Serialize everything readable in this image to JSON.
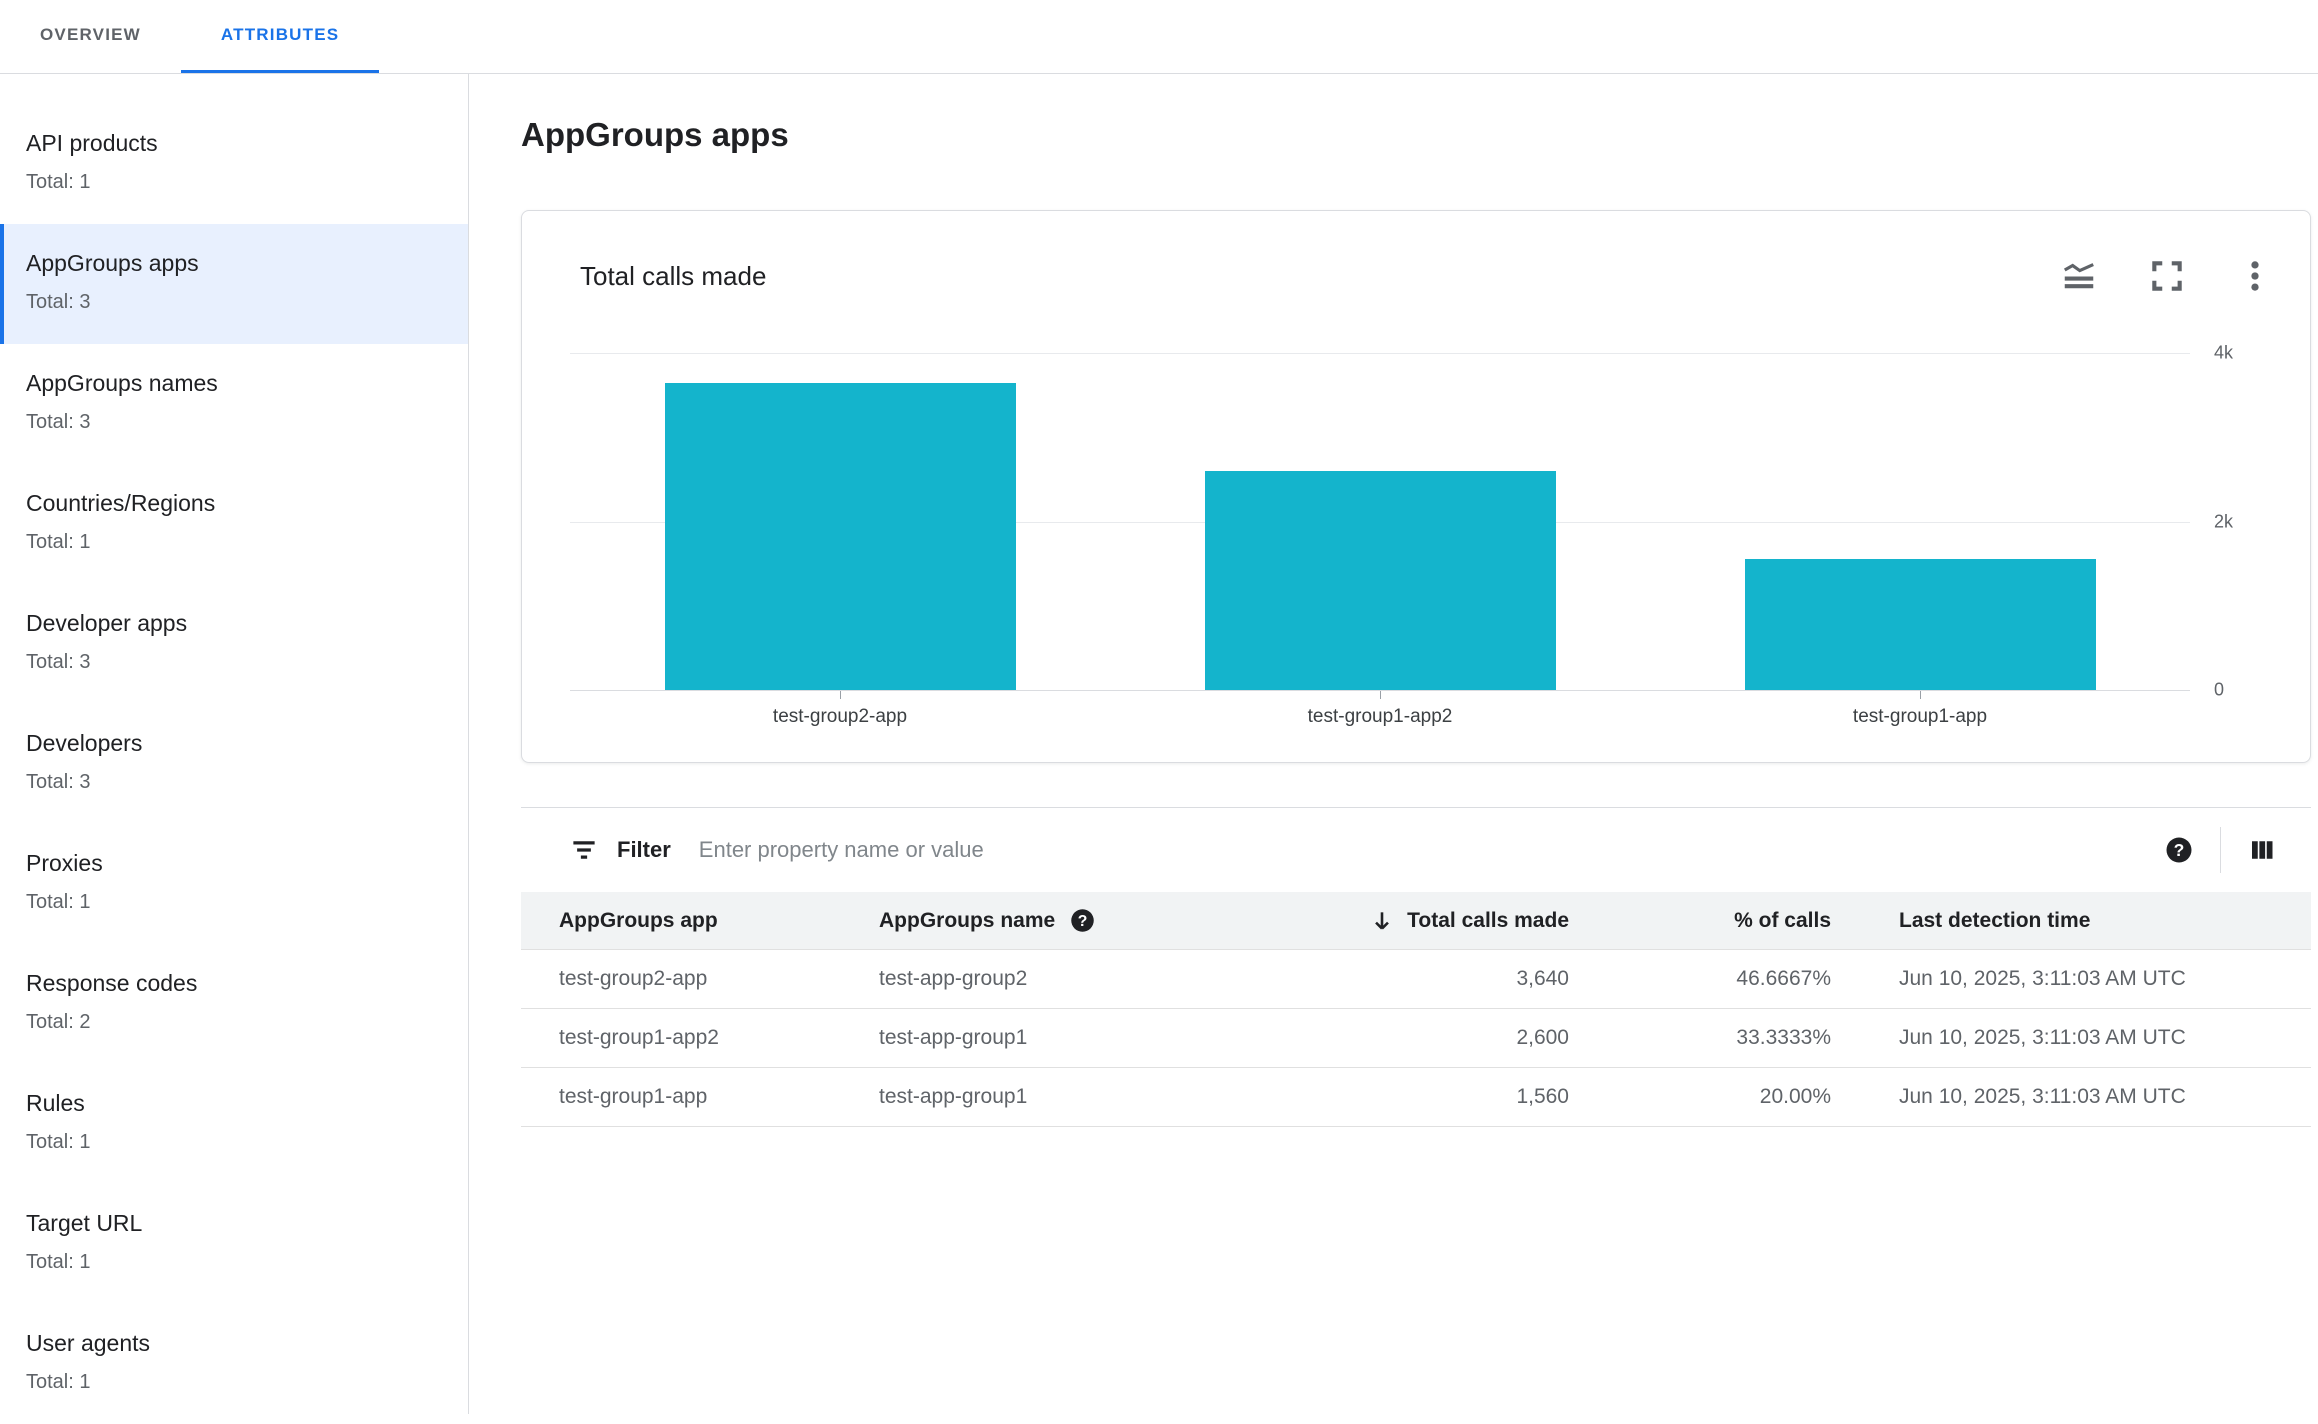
{
  "tabs": [
    {
      "label": "OVERVIEW",
      "active": false
    },
    {
      "label": "ATTRIBUTES",
      "active": true
    }
  ],
  "sidebar": {
    "items": [
      {
        "label": "API products",
        "total": "Total: 1",
        "selected": false
      },
      {
        "label": "AppGroups apps",
        "total": "Total: 3",
        "selected": true
      },
      {
        "label": "AppGroups names",
        "total": "Total: 3",
        "selected": false
      },
      {
        "label": "Countries/Regions",
        "total": "Total: 1",
        "selected": false
      },
      {
        "label": "Developer apps",
        "total": "Total: 3",
        "selected": false
      },
      {
        "label": "Developers",
        "total": "Total: 3",
        "selected": false
      },
      {
        "label": "Proxies",
        "total": "Total: 1",
        "selected": false
      },
      {
        "label": "Response codes",
        "total": "Total: 2",
        "selected": false
      },
      {
        "label": "Rules",
        "total": "Total: 1",
        "selected": false
      },
      {
        "label": "Target URL",
        "total": "Total: 1",
        "selected": false
      },
      {
        "label": "User agents",
        "total": "Total: 1",
        "selected": false
      }
    ]
  },
  "page": {
    "title": "AppGroups apps"
  },
  "chart_data": {
    "type": "bar",
    "title": "Total calls made",
    "categories": [
      "test-group2-app",
      "test-group1-app2",
      "test-group1-app"
    ],
    "values": [
      3640,
      2600,
      1560
    ],
    "ylim": [
      0,
      4000
    ],
    "y_ticks": [
      {
        "label": "4k",
        "value": 4000
      },
      {
        "label": "2k",
        "value": 2000
      },
      {
        "label": "0",
        "value": 0
      }
    ],
    "xlabel": "",
    "ylabel": "",
    "grid": true,
    "legend": "none",
    "bar_color": "#14b4cc"
  },
  "card_icons": [
    {
      "name": "area-chart-icon"
    },
    {
      "name": "fullscreen-icon"
    },
    {
      "name": "more-vert-icon"
    }
  ],
  "filter": {
    "label": "Filter",
    "placeholder": "Enter property name or value"
  },
  "table": {
    "columns": [
      {
        "label": "AppGroups app"
      },
      {
        "label": "AppGroups name",
        "help": true
      },
      {
        "label": "Total calls made",
        "sorted": "desc"
      },
      {
        "label": "% of calls"
      },
      {
        "label": "Last detection time"
      }
    ],
    "rows": [
      {
        "app": "test-group2-app",
        "name": "test-app-group2",
        "calls": "3,640",
        "pct": "46.6667%",
        "time": "Jun 10, 2025, 3:11:03 AM UTC"
      },
      {
        "app": "test-group1-app2",
        "name": "test-app-group1",
        "calls": "2,600",
        "pct": "33.3333%",
        "time": "Jun 10, 2025, 3:11:03 AM UTC"
      },
      {
        "app": "test-group1-app",
        "name": "test-app-group1",
        "calls": "1,560",
        "pct": "20.00%",
        "time": "Jun 10, 2025, 3:11:03 AM UTC"
      }
    ]
  },
  "colors": {
    "accent": "#1a73e8",
    "bar": "#14b4cc",
    "selected_bg": "#e8f0fe",
    "border": "#dadce0",
    "grid": "#e8eaed",
    "header_bg": "#f1f3f4",
    "text": "#202124",
    "muted": "#5f6368"
  }
}
